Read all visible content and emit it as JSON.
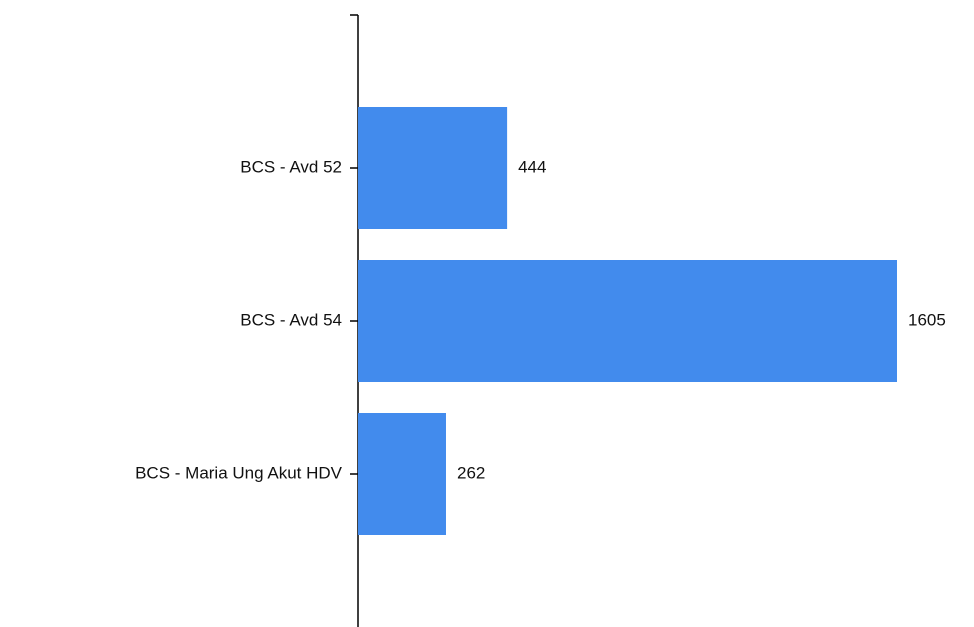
{
  "chart_data": {
    "type": "bar",
    "orientation": "horizontal",
    "categories": [
      "BCS - Avd 52",
      "BCS - Avd 54",
      "BCS - Maria Ung Akut HDV"
    ],
    "values": [
      444,
      1605,
      262
    ],
    "color": "#428bed"
  }
}
